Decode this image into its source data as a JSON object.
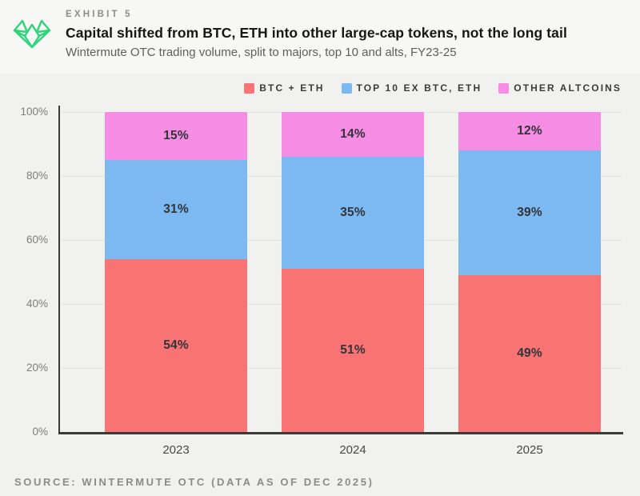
{
  "header": {
    "exhibit_label": "EXHIBIT 5",
    "title": "Capital shifted from BTC, ETH into other large-cap tokens, not the long tail",
    "subtitle": "Wintermute OTC trading volume, split to majors, top 10 and alts, FY23-25",
    "logo_color": "#2ed47b"
  },
  "legend": {
    "items": [
      {
        "label": "BTC + ETH",
        "color": "#f87474"
      },
      {
        "label": "TOP 10 EX BTC, ETH",
        "color": "#7bb9f0"
      },
      {
        "label": "OTHER ALTCOINS",
        "color": "#f48de3"
      }
    ]
  },
  "chart_data": {
    "type": "bar",
    "stacked": true,
    "categories": [
      "2023",
      "2024",
      "2025"
    ],
    "series": [
      {
        "name": "BTC + ETH",
        "color": "#f87474",
        "values": [
          54,
          51,
          49
        ]
      },
      {
        "name": "TOP 10 EX BTC, ETH",
        "color": "#7bb9f0",
        "values": [
          31,
          35,
          39
        ]
      },
      {
        "name": "OTHER ALTCOINS",
        "color": "#f48de3",
        "values": [
          15,
          14,
          12
        ]
      }
    ],
    "data_labels": [
      [
        "54%",
        "51%",
        "49%"
      ],
      [
        "31%",
        "35%",
        "39%"
      ],
      [
        "15%",
        "14%",
        "12%"
      ]
    ],
    "title": "Capital shifted from BTC, ETH into other large-cap tokens, not the long tail",
    "xlabel": "",
    "ylabel": "",
    "ylim": [
      0,
      100
    ],
    "grid": true,
    "legend_position": "top-right"
  },
  "axes": {
    "y_ticks": [
      "100%",
      "80%",
      "60%",
      "40%",
      "20%",
      "0%"
    ]
  },
  "footer": {
    "source": "SOURCE: WINTERMUTE OTC (DATA AS OF DEC 2025)"
  }
}
